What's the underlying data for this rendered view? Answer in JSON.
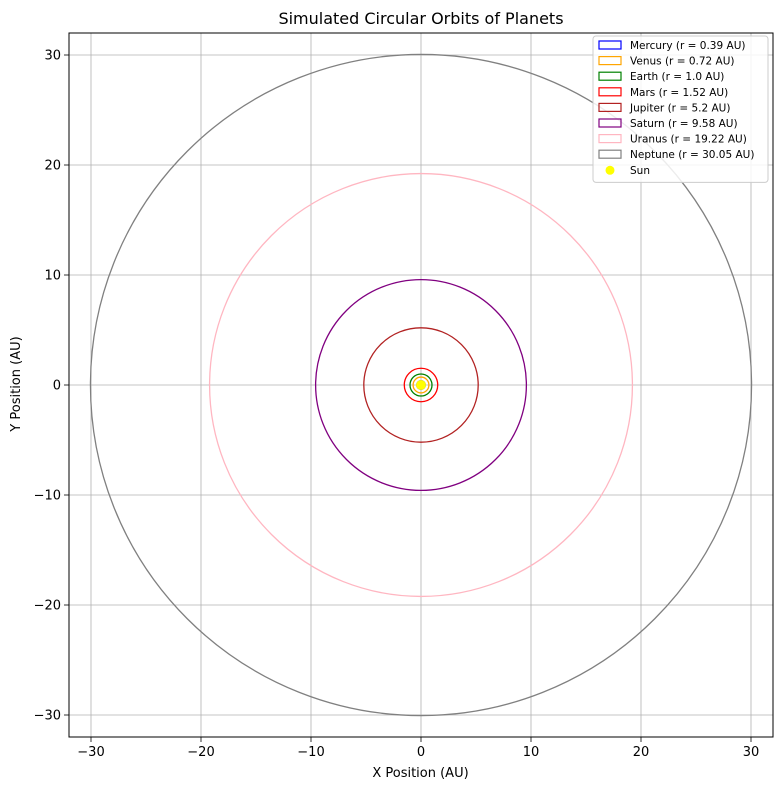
{
  "chart_data": {
    "type": "line",
    "title": "Simulated Circular Orbits of Planets",
    "xlabel": "X Position (AU)",
    "ylabel": "Y Position (AU)",
    "xlim": [
      -32,
      32
    ],
    "ylim": [
      -32,
      32
    ],
    "xticks": [
      -30,
      -20,
      -10,
      0,
      10,
      20,
      30
    ],
    "yticks": [
      -30,
      -20,
      -10,
      0,
      10,
      20,
      30
    ],
    "xtick_labels": [
      "−30",
      "−20",
      "−10",
      "0",
      "10",
      "20",
      "30"
    ],
    "ytick_labels": [
      "−30",
      "−20",
      "−10",
      "0",
      "10",
      "20",
      "30"
    ],
    "grid": true,
    "legend_position": "top-right",
    "series": [
      {
        "name": "Mercury (r = 0.39 AU)",
        "radius": 0.39,
        "color": "#0000ff"
      },
      {
        "name": "Venus (r = 0.72 AU)",
        "radius": 0.72,
        "color": "#ffa500"
      },
      {
        "name": "Earth (r = 1.0 AU)",
        "radius": 1.0,
        "color": "#008000"
      },
      {
        "name": "Mars (r = 1.52 AU)",
        "radius": 1.52,
        "color": "#ff0000"
      },
      {
        "name": "Jupiter (r = 5.2 AU)",
        "radius": 5.2,
        "color": "#b22222"
      },
      {
        "name": "Saturn (r = 9.58 AU)",
        "radius": 9.58,
        "color": "#800080"
      },
      {
        "name": "Uranus (r = 19.22 AU)",
        "radius": 19.22,
        "color": "#ffb6c1"
      },
      {
        "name": "Neptune (r = 30.05 AU)",
        "radius": 30.05,
        "color": "#808080"
      }
    ],
    "sun": {
      "name": "Sun",
      "x": 0,
      "y": 0,
      "color": "#ffff00"
    }
  }
}
